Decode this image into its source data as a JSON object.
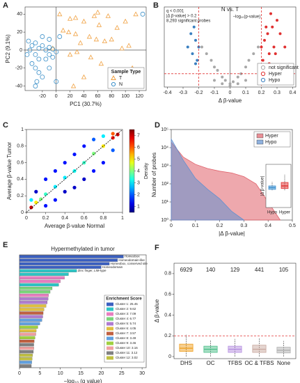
{
  "chart_data": [
    {
      "type": "scatter",
      "panel": "A",
      "xlabel": "PC1 (30.7%)",
      "ylabel": "PC2 (9.1%)",
      "xlim": [
        -45,
        130
      ],
      "ylim": [
        -45,
        48
      ],
      "xticks": [
        -20,
        0,
        20,
        40,
        60,
        80,
        100,
        120
      ],
      "yticks": [
        -40,
        -20,
        0,
        20,
        40
      ],
      "legend": "lower right",
      "legend_title": "Sample Type",
      "series": [
        {
          "name": "T",
          "color": "#f0a040",
          "marker": "triangle",
          "x": [
            5,
            20,
            28,
            40,
            55,
            60,
            62,
            75,
            88,
            100,
            115,
            10,
            18,
            28,
            35,
            48,
            58,
            70,
            80,
            95,
            105,
            20,
            30,
            50,
            65,
            80,
            110,
            -5,
            40,
            25
          ],
          "y": [
            40,
            35,
            36,
            32,
            38,
            42,
            28,
            38,
            25,
            32,
            40,
            22,
            20,
            18,
            8,
            15,
            12,
            10,
            12,
            2,
            5,
            -5,
            -2,
            -8,
            -15,
            -25,
            -20,
            2,
            -30,
            -40
          ]
        },
        {
          "name": "N",
          "color": "#3a8fc8",
          "marker": "circle",
          "x": [
            -40,
            -35,
            -30,
            -25,
            -20,
            -15,
            -10,
            -5,
            0,
            -38,
            -30,
            -25,
            -35,
            -30,
            -25,
            -20,
            -28,
            -15,
            -10,
            -5,
            -20,
            -10,
            5,
            -42,
            125,
            -30,
            0,
            -10
          ],
          "y": [
            10,
            5,
            8,
            2,
            5,
            0,
            3,
            1,
            -2,
            0,
            -5,
            -10,
            -15,
            -20,
            -25,
            -30,
            -35,
            -10,
            -5,
            -8,
            15,
            12,
            15,
            -5,
            40,
            -40,
            -35,
            -20
          ]
        }
      ]
    },
    {
      "type": "scatter",
      "panel": "B",
      "title": "N vs. T",
      "xlabel": "Δ β-value",
      "ylabel": "−log₁₀(p-value)",
      "xlim": [
        -0.42,
        0.42
      ],
      "ylim": [
        0,
        12
      ],
      "xticks": [
        -0.4,
        -0.3,
        -0.2,
        -0.1,
        0,
        0.1,
        0.2,
        0.3,
        0.4
      ],
      "annotations": [
        "q < 0.001",
        "|Δ β-value| > 0.2",
        "8,293 significant probes"
      ],
      "thresholds": {
        "x": [
          -0.2,
          0.2
        ],
        "y": 2,
        "color": "#e03030"
      },
      "legend": "lower right",
      "series": [
        {
          "name": "not significant",
          "color": "#a8a8a8",
          "marker": "dot",
          "x": [
            -0.18,
            -0.15,
            -0.12,
            -0.1,
            -0.08,
            -0.05,
            -0.03,
            0,
            0.02,
            0.05,
            0.07,
            0.1,
            0.12,
            0.15,
            0.18,
            -0.1,
            0.1,
            -0.05,
            0.05,
            0
          ],
          "y": [
            6,
            5,
            4,
            3,
            2.5,
            1.5,
            1,
            0.5,
            0.8,
            1.5,
            2,
            3,
            4,
            5,
            6,
            1,
            1,
            0.5,
            0.5,
            0.2
          ]
        },
        {
          "name": "Hyper",
          "color": "#e03030",
          "marker": "dot",
          "x": [
            0.2,
            0.22,
            0.24,
            0.25,
            0.27,
            0.28,
            0.3,
            0.21,
            0.23,
            0.26,
            0.32,
            0.35,
            0.22,
            0.25,
            0.29
          ],
          "y": [
            6,
            7,
            8,
            5,
            9,
            6,
            10,
            4,
            9,
            11,
            8,
            6,
            3,
            3.5,
            5
          ]
        },
        {
          "name": "Hypo",
          "color": "#3a7fc0",
          "marker": "dot",
          "x": [
            -0.2,
            -0.22,
            -0.24,
            -0.25,
            -0.21,
            -0.23,
            -0.27,
            -0.22
          ],
          "y": [
            6,
            7,
            5,
            8,
            4,
            9,
            6,
            3.5
          ]
        }
      ]
    },
    {
      "type": "scatter",
      "panel": "C",
      "xlabel": "Average β-value Normal",
      "ylabel": "Average β-value Tumor",
      "xlim": [
        0,
        1
      ],
      "ylim": [
        0,
        1
      ],
      "xticks": [
        0,
        0.2,
        0.4,
        0.6,
        0.8,
        1
      ],
      "yticks": [
        0,
        0.2,
        0.4,
        0.6,
        0.8,
        1
      ],
      "diagonal": true,
      "colormap": "jet",
      "clim": [
        0.5,
        7.5
      ],
      "cticks": [
        1,
        2,
        3,
        4,
        5,
        6,
        7
      ],
      "clabel": "Density",
      "series": [
        {
          "marker": "dot",
          "x": [
            0.05,
            0.1,
            0.15,
            0.2,
            0.3,
            0.4,
            0.5,
            0.6,
            0.7,
            0.8,
            0.9,
            0.95,
            0.1,
            0.2,
            0.3,
            0.4,
            0.5,
            0.6,
            0.7,
            0.8,
            0.2,
            0.3,
            0.4,
            0.5,
            0.6,
            0.7,
            0.8,
            0.9,
            0.05,
            0.9
          ],
          "y": [
            0.06,
            0.12,
            0.16,
            0.22,
            0.31,
            0.42,
            0.5,
            0.6,
            0.71,
            0.8,
            0.9,
            0.94,
            0.25,
            0.4,
            0.5,
            0.6,
            0.7,
            0.8,
            0.88,
            0.92,
            0.08,
            0.15,
            0.25,
            0.3,
            0.4,
            0.5,
            0.6,
            0.75,
            0.15,
            0.95
          ],
          "density": [
            7,
            5,
            4,
            3.5,
            3,
            3,
            3.2,
            3.5,
            4,
            5,
            6.5,
            7,
            1,
            1.5,
            1.5,
            1.5,
            1.5,
            1.5,
            2,
            3,
            1.5,
            1.5,
            1,
            1,
            1,
            1.5,
            1.5,
            2,
            3,
            6
          ]
        }
      ]
    },
    {
      "type": "area",
      "panel": "D",
      "xlabel": "|Δ β-value|",
      "ylabel": "Number of probes",
      "log_y": true,
      "xlim": [
        0,
        0.5
      ],
      "ylim": [
        1,
        100000
      ],
      "xticks": [
        0,
        0.1,
        0.2,
        0.3,
        0.4,
        0.5
      ],
      "yticks": [
        {
          "value": 1,
          "label": "10⁰"
        },
        {
          "value": 10,
          "label": "10¹"
        },
        {
          "value": 100,
          "label": "10²"
        },
        {
          "value": 1000,
          "label": "10³"
        },
        {
          "value": 10000,
          "label": "10⁴"
        },
        {
          "value": 100000,
          "label": "10⁵"
        }
      ],
      "legend": "upper right",
      "x": [
        0,
        0.05,
        0.1,
        0.15,
        0.2,
        0.25,
        0.3,
        0.35,
        0.4,
        0.45
      ],
      "series": [
        {
          "name": "Hyper",
          "color": "#e0606a",
          "values": [
            20000,
            3000,
            1200,
            700,
            500,
            400,
            250,
            100,
            10,
            1
          ]
        },
        {
          "name": "Hypo",
          "color": "#6090d0",
          "values": [
            30000,
            2000,
            200,
            50,
            15,
            3,
            1,
            null,
            null,
            null
          ]
        }
      ],
      "inset": {
        "ylabel": "|Δ β-value|",
        "categories": [
          "Hypo",
          "Hyper"
        ],
        "ylim": [
          0,
          0.5
        ],
        "colors": [
          "#3a8fd0",
          "#e03030"
        ],
        "boxes": [
          {
            "whislo": 0.2,
            "q1": 0.21,
            "median": 0.23,
            "q3": 0.25,
            "whishi": 0.3
          },
          {
            "whislo": 0.2,
            "q1": 0.22,
            "median": 0.25,
            "q3": 0.29,
            "whishi": 0.38
          }
        ]
      }
    },
    {
      "type": "barh",
      "panel": "E",
      "title": "Hypermethylated in tumor",
      "xlabel": "−log₁₀ (q value)",
      "xlim": [
        0,
        31
      ],
      "xticks": [
        0,
        5,
        10,
        15,
        20,
        25,
        30
      ],
      "categories": [
        "Homeobox",
        "Homeodomain-like",
        "Homeobox, conserved site",
        "Homeodomain",
        "Zinc finger, LIM-type",
        null,
        null,
        null,
        null,
        null,
        null,
        null,
        null,
        null,
        null,
        null,
        null,
        null,
        null,
        null,
        null,
        null,
        null,
        null,
        null,
        null,
        null,
        null,
        null,
        null,
        null,
        null
      ],
      "values": [
        25.45,
        24,
        22,
        20,
        14,
        12,
        11,
        10,
        9.6,
        8,
        7.5,
        7.1,
        7,
        6.8,
        6.5,
        6,
        5.8,
        5.7,
        5.5,
        5,
        4.5,
        4.1,
        4,
        3.8,
        3.6,
        3.5,
        3.5,
        3.4,
        3.2,
        3.1,
        3.0,
        2.9
      ],
      "colors": [
        "#3a5fc0",
        "#3a5fc0",
        "#3a5fc0",
        "#3a5fc0",
        "#2ec4c4",
        "#2ec4c4",
        "#e87ec0",
        "#e87ec0",
        "#2ec4c4",
        "#7bd67b",
        "#7bd67b",
        "#e87ec0",
        "#b07bd0",
        "#b07bd0",
        "#e0c040",
        "#e0c040",
        "#c06040",
        "#b07bd0",
        "#60a0e0",
        "#60a0e0",
        "#a0d040",
        "#e0c040",
        "#f0a0a0",
        "#a0d040",
        "#c06040",
        "#808080",
        "#f0a0a0",
        "#808080",
        "#c0c040",
        "#c0c040",
        "#60a0e0",
        "#808080"
      ],
      "legend_title": "Enrichment Score",
      "legend_labels": [
        "Cluster 1: 25.45",
        "Cluster 2: 9.62",
        "Cluster 3: 7.09",
        "Cluster 4: 6.77",
        "Cluster 5: 5.74",
        "Cluster 6: 4.05",
        "Cluster 7: 3.57",
        "Cluster 8: 3.49",
        "Cluster 9: 3.46",
        "Cluster 10: 3.16",
        "Cluster 11: 3.12",
        "Cluster 12: 3.02"
      ],
      "legend_colors": [
        "#3a5fc0",
        "#2ec4c4",
        "#e87ec0",
        "#7bd67b",
        "#b07bd0",
        "#e0c040",
        "#c06040",
        "#60a0e0",
        "#a0d040",
        "#f0a0a0",
        "#808080",
        "#c0c040"
      ]
    },
    {
      "type": "box",
      "panel": "F",
      "ylabel": "Δ β-value",
      "ylim": [
        -0.02,
        0.9
      ],
      "yticks": [
        0,
        0.2,
        0.4,
        0.6,
        0.8
      ],
      "hline": 0.2,
      "categories": [
        "DHS",
        "OC",
        "TFBS",
        "OC & TFBS",
        "None"
      ],
      "counts": [
        6929,
        140,
        129,
        441,
        105
      ],
      "colors": [
        "#f0a020",
        "#4dbf8a",
        "#b58fe0",
        "#c9a9a0",
        "#b0b0b0"
      ],
      "boxes": [
        {
          "whislo": 0,
          "q1": 0.05,
          "median": 0.08,
          "q3": 0.12,
          "whishi": 0.21
        },
        {
          "whislo": 0,
          "q1": 0.04,
          "median": 0.07,
          "q3": 0.1,
          "whishi": 0.16
        },
        {
          "whislo": 0,
          "q1": 0.04,
          "median": 0.07,
          "q3": 0.1,
          "whishi": 0.17
        },
        {
          "whislo": 0,
          "q1": 0.04,
          "median": 0.07,
          "q3": 0.11,
          "whishi": 0.18
        },
        {
          "whislo": 0,
          "q1": 0.035,
          "median": 0.06,
          "q3": 0.09,
          "whishi": 0.15
        }
      ]
    }
  ]
}
